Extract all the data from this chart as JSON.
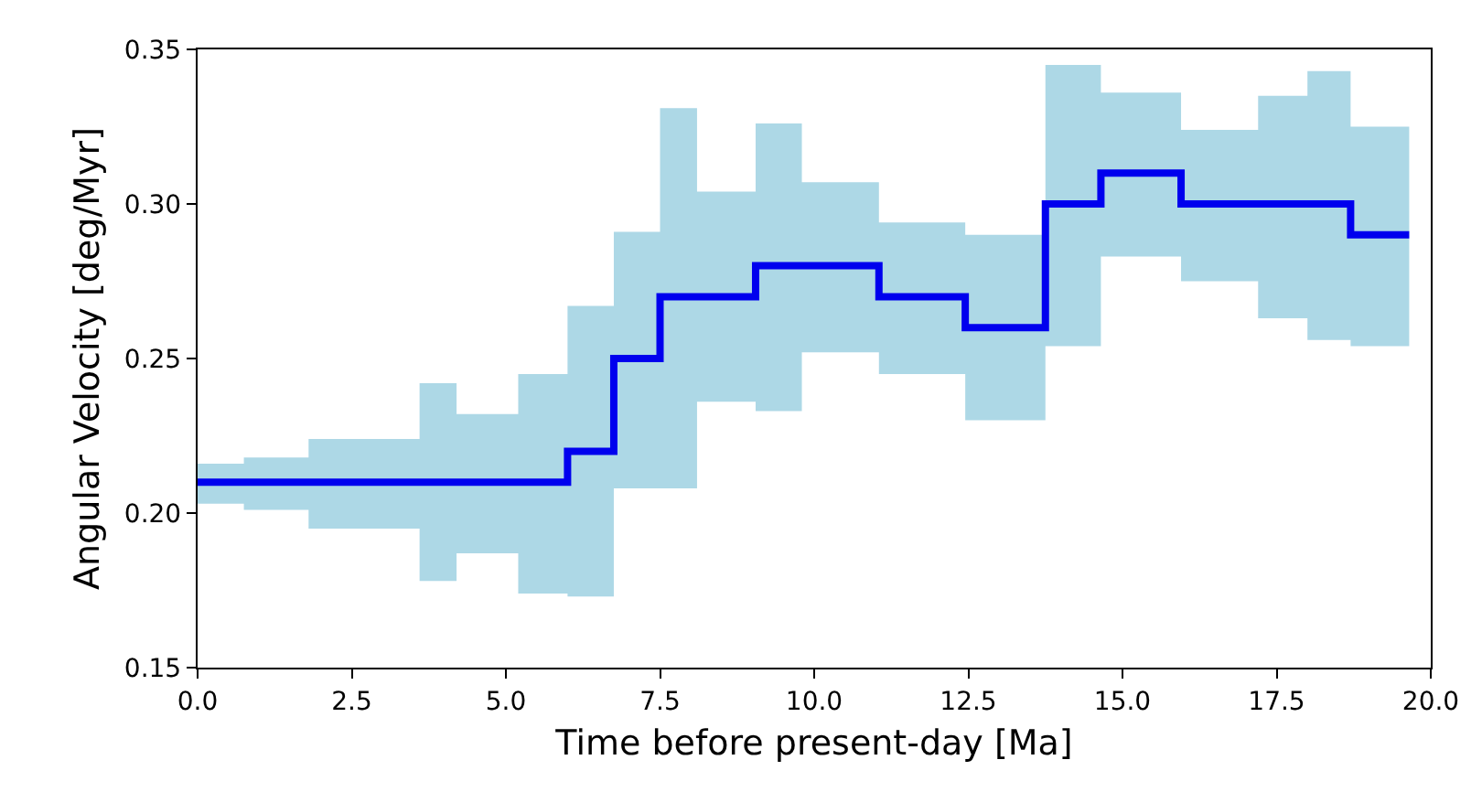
{
  "chart_data": {
    "type": "step",
    "xlabel": "Time before present-day [Ma]",
    "ylabel": "Angular Velocity [deg/Myr]",
    "xlim": [
      0,
      20
    ],
    "ylim": [
      0.15,
      0.35
    ],
    "xticks": [
      {
        "value": 0,
        "label": "0.0"
      },
      {
        "value": 2.5,
        "label": "2.5"
      },
      {
        "value": 5,
        "label": "5.0"
      },
      {
        "value": 7.5,
        "label": "7.5"
      },
      {
        "value": 10,
        "label": "10.0"
      },
      {
        "value": 12.5,
        "label": "12.5"
      },
      {
        "value": 15,
        "label": "15.0"
      },
      {
        "value": 17.5,
        "label": "17.5"
      },
      {
        "value": 20,
        "label": "20.0"
      }
    ],
    "yticks": [
      {
        "value": 0.15,
        "label": "0.15"
      },
      {
        "value": 0.2,
        "label": "0.20"
      },
      {
        "value": 0.25,
        "label": "0.25"
      },
      {
        "value": 0.3,
        "label": "0.30"
      },
      {
        "value": 0.35,
        "label": "0.35"
      }
    ],
    "grid": false,
    "marker": "none",
    "line_style": "solid",
    "series": [
      {
        "color": "#0000ee",
        "x": [
          0,
          0.75,
          1.8,
          3.6,
          4.2,
          5.2,
          6.0,
          6.75,
          7.5,
          8.1,
          9.05,
          9.8,
          11.05,
          12.45,
          13.75,
          14.65,
          15.95,
          17.2,
          18.0,
          18.7,
          19.65
        ],
        "values": [
          0.21,
          0.21,
          0.21,
          0.21,
          0.21,
          0.21,
          0.22,
          0.25,
          0.27,
          0.27,
          0.28,
          0.28,
          0.27,
          0.26,
          0.3,
          0.31,
          0.3,
          0.3,
          0.3,
          0.29,
          0.29
        ],
        "lower": [
          0.203,
          0.201,
          0.195,
          0.178,
          0.187,
          0.174,
          0.173,
          0.208,
          0.208,
          0.236,
          0.233,
          0.252,
          0.245,
          0.23,
          0.254,
          0.283,
          0.275,
          0.263,
          0.256,
          0.254,
          0.254
        ],
        "upper": [
          0.216,
          0.218,
          0.224,
          0.242,
          0.232,
          0.245,
          0.267,
          0.291,
          0.331,
          0.304,
          0.326,
          0.307,
          0.294,
          0.29,
          0.345,
          0.336,
          0.324,
          0.335,
          0.343,
          0.325,
          0.325
        ]
      }
    ]
  }
}
